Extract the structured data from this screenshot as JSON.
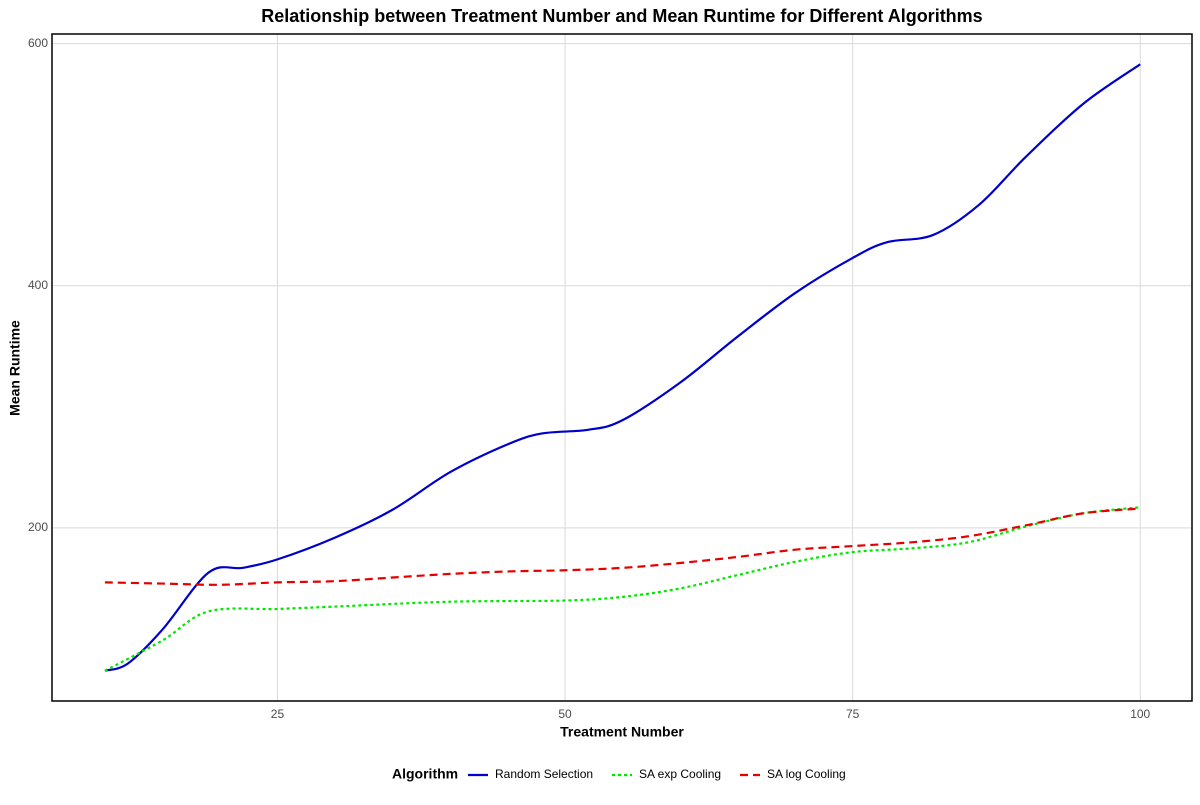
{
  "chart_data": {
    "type": "line",
    "title": "Relationship between Treatment Number and Mean Runtime for Different Algorithms",
    "x_label": "Treatment Number",
    "y_label": "Mean Runtime",
    "legend_title": "Algorithm",
    "legend": "bottom",
    "grid": true,
    "xlim": [
      5.4,
      104.5
    ],
    "xticks": [
      25,
      50,
      75,
      100
    ],
    "ylim": [
      57,
      608
    ],
    "yticks": [
      200,
      400,
      600
    ],
    "series": [
      {
        "name": "Random Selection",
        "color": "#0000cc",
        "dash": "solid",
        "x": [
          10,
          12,
          15,
          19,
          22,
          25,
          30,
          35,
          40,
          45,
          48,
          52,
          55,
          60,
          65,
          70,
          75,
          78,
          82,
          86,
          90,
          95,
          100
        ],
        "values": [
          82,
          88,
          116,
          163,
          167,
          174,
          192,
          215,
          246,
          269,
          278,
          281,
          289,
          320,
          358,
          394,
          423,
          436,
          442,
          467,
          506,
          550,
          583
        ]
      },
      {
        "name": "SA exp Cooling",
        "color": "#00e600",
        "dash": "dotted",
        "x": [
          10,
          15,
          19,
          25,
          30,
          40,
          50,
          55,
          60,
          65,
          70,
          75,
          80,
          85,
          90,
          95,
          100
        ],
        "values": [
          82,
          107,
          131,
          133,
          135,
          139,
          140,
          143,
          150,
          161,
          172,
          180,
          183,
          188,
          201,
          212,
          217
        ]
      },
      {
        "name": "SA log Cooling",
        "color": "#e60000",
        "dash": "dashed",
        "x": [
          10,
          15,
          20,
          25,
          30,
          35,
          40,
          45,
          50,
          55,
          60,
          65,
          70,
          75,
          80,
          85,
          90,
          95,
          100
        ],
        "values": [
          155,
          154,
          153,
          155,
          156,
          159,
          162,
          164,
          165,
          167,
          171,
          176,
          182,
          185,
          188,
          193,
          202,
          212,
          216
        ]
      }
    ]
  }
}
